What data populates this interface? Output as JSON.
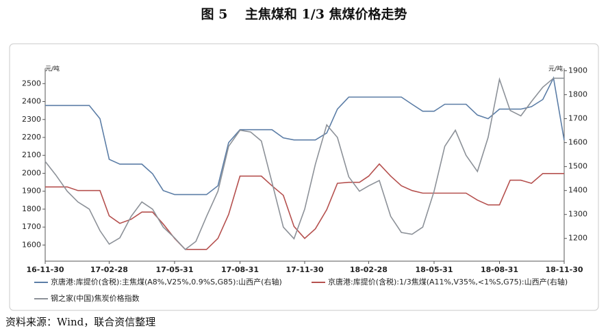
{
  "chart_data": {
    "type": "line",
    "title": "图 5　 主焦煤和 1/3 焦煤价格走势",
    "y_label": "元/吨",
    "y2_label": "元/吨",
    "source": "资料来源：Wind，联合资信整理",
    "x": [
      "16-11-30",
      "16-12-15",
      "16-12-31",
      "17-01-15",
      "17-01-31",
      "17-02-15",
      "17-02-28",
      "17-03-15",
      "17-03-31",
      "17-04-15",
      "17-04-30",
      "17-05-15",
      "17-05-31",
      "17-06-15",
      "17-06-30",
      "17-07-15",
      "17-07-31",
      "17-08-15",
      "17-08-31",
      "17-09-15",
      "17-09-30",
      "17-10-15",
      "17-10-31",
      "17-11-15",
      "17-11-30",
      "17-12-15",
      "17-12-31",
      "18-01-15",
      "18-01-31",
      "18-02-15",
      "18-02-28",
      "18-03-15",
      "18-03-31",
      "18-04-15",
      "18-04-30",
      "18-05-15",
      "18-05-31",
      "18-06-15",
      "18-06-30",
      "18-07-15",
      "18-07-31",
      "18-08-15",
      "18-08-31",
      "18-09-15",
      "18-09-30",
      "18-10-15",
      "18-10-31",
      "18-11-15",
      "18-11-30"
    ],
    "xlim": [
      "16-11-30",
      "18-11-30"
    ],
    "xticks": [
      "16-11-30",
      "17-02-28",
      "17-05-31",
      "17-08-31",
      "17-11-30",
      "18-02-28",
      "18-05-31",
      "18-08-31",
      "18-11-30"
    ],
    "ylim": [
      1510,
      2585
    ],
    "yticks": [
      1600,
      1700,
      1800,
      1900,
      2000,
      2100,
      2200,
      2300,
      2400,
      2500
    ],
    "y2lim": [
      1105,
      1910
    ],
    "y2ticks": [
      1200,
      1300,
      1400,
      1500,
      1600,
      1700,
      1800,
      1900
    ],
    "series": [
      {
        "name": "京唐港:库提价(含税):主焦煤(A8%,V25%,0.9%S,G85):山西产(右轴)",
        "color": "#5b7da6",
        "axis": "y2",
        "values": [
          1755,
          1755,
          1755,
          1755,
          1755,
          1700,
          1530,
          1510,
          1510,
          1510,
          1470,
          1400,
          1383,
          1383,
          1383,
          1383,
          1420,
          1600,
          1654,
          1654,
          1654,
          1654,
          1620,
          1611,
          1611,
          1611,
          1640,
          1740,
          1790,
          1790,
          1790,
          1790,
          1790,
          1790,
          1760,
          1731,
          1731,
          1760,
          1760,
          1760,
          1715,
          1700,
          1740,
          1740,
          1740,
          1750,
          1780,
          1870,
          1610
        ]
      },
      {
        "name": "京唐港:库提价(含税):1/3焦煤(A11%,V35%,<1%S,G75):山西产(右轴)",
        "color": "#b5504e",
        "axis": "y2",
        "values": [
          1415,
          1415,
          1415,
          1400,
          1400,
          1400,
          1294,
          1263,
          1280,
          1310,
          1310,
          1260,
          1200,
          1154,
          1154,
          1154,
          1200,
          1300,
          1460,
          1460,
          1460,
          1420,
          1380,
          1250,
          1200,
          1240,
          1320,
          1430,
          1434,
          1434,
          1460,
          1511,
          1460,
          1420,
          1400,
          1389,
          1389,
          1389,
          1389,
          1389,
          1360,
          1340,
          1340,
          1443,
          1443,
          1430,
          1471,
          1471,
          1471
        ]
      },
      {
        "name": "钢之家(中国)焦炭价格指数",
        "color": "#8c9198",
        "axis": "y",
        "values": [
          2066,
          1990,
          1900,
          1840,
          1800,
          1680,
          1605,
          1640,
          1760,
          1840,
          1800,
          1700,
          1640,
          1575,
          1620,
          1760,
          1900,
          2150,
          2240,
          2230,
          2180,
          1950,
          1700,
          1635,
          1800,
          2050,
          2270,
          2200,
          1980,
          1900,
          1930,
          1960,
          1760,
          1670,
          1660,
          1700,
          1900,
          2150,
          2240,
          2100,
          2010,
          2200,
          2524,
          2350,
          2320,
          2400,
          2480,
          2530,
          2530
        ]
      }
    ]
  }
}
